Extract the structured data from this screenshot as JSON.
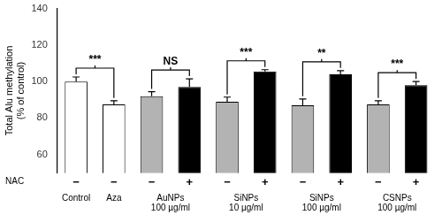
{
  "chart_data": {
    "type": "bar",
    "y_label": [
      "Total Alu methylation",
      "(% of control)"
    ],
    "row_label": "NAC",
    "categories": [
      "−",
      "−",
      "−",
      "+",
      "−",
      "+",
      "−",
      "+",
      "−",
      "+"
    ],
    "values": [
      100,
      87.5,
      92,
      97,
      89,
      105.5,
      87,
      104,
      87.5,
      98
    ],
    "errors": [
      2.5,
      2,
      2.5,
      4.5,
      2.5,
      1,
      3.5,
      2,
      2,
      2
    ],
    "colors": [
      "#ffffff",
      "#ffffff",
      "#b3b3b3",
      "#000000",
      "#b3b3b3",
      "#000000",
      "#b3b3b3",
      "#000000",
      "#b3b3b3",
      "#000000"
    ],
    "groups": [
      {
        "label": [
          "Control"
        ],
        "bars": [
          0
        ]
      },
      {
        "label": [
          "Aza"
        ],
        "bars": [
          1
        ]
      },
      {
        "label": [
          "AuNPs",
          "100 µg/ml"
        ],
        "bars": [
          2,
          3
        ]
      },
      {
        "label": [
          "SiNPs",
          "10 µg/ml"
        ],
        "bars": [
          4,
          5
        ]
      },
      {
        "label": [
          "SiNPs",
          "100 µg/ml"
        ],
        "bars": [
          6,
          7
        ]
      },
      {
        "label": [
          "CSNPs",
          "100 µg/ml"
        ],
        "bars": [
          8,
          9
        ]
      }
    ],
    "annotations": [
      {
        "text": "***",
        "bars": [
          0,
          1
        ]
      },
      {
        "text": "NS",
        "bars": [
          2,
          3
        ]
      },
      {
        "text": "***",
        "bars": [
          4,
          5
        ]
      },
      {
        "text": "**",
        "bars": [
          6,
          7
        ]
      },
      {
        "text": "***",
        "bars": [
          8,
          9
        ]
      }
    ],
    "ylim": [
      50,
      140
    ],
    "yticks": [
      60,
      80,
      100,
      120,
      140
    ],
    "grid": false
  }
}
